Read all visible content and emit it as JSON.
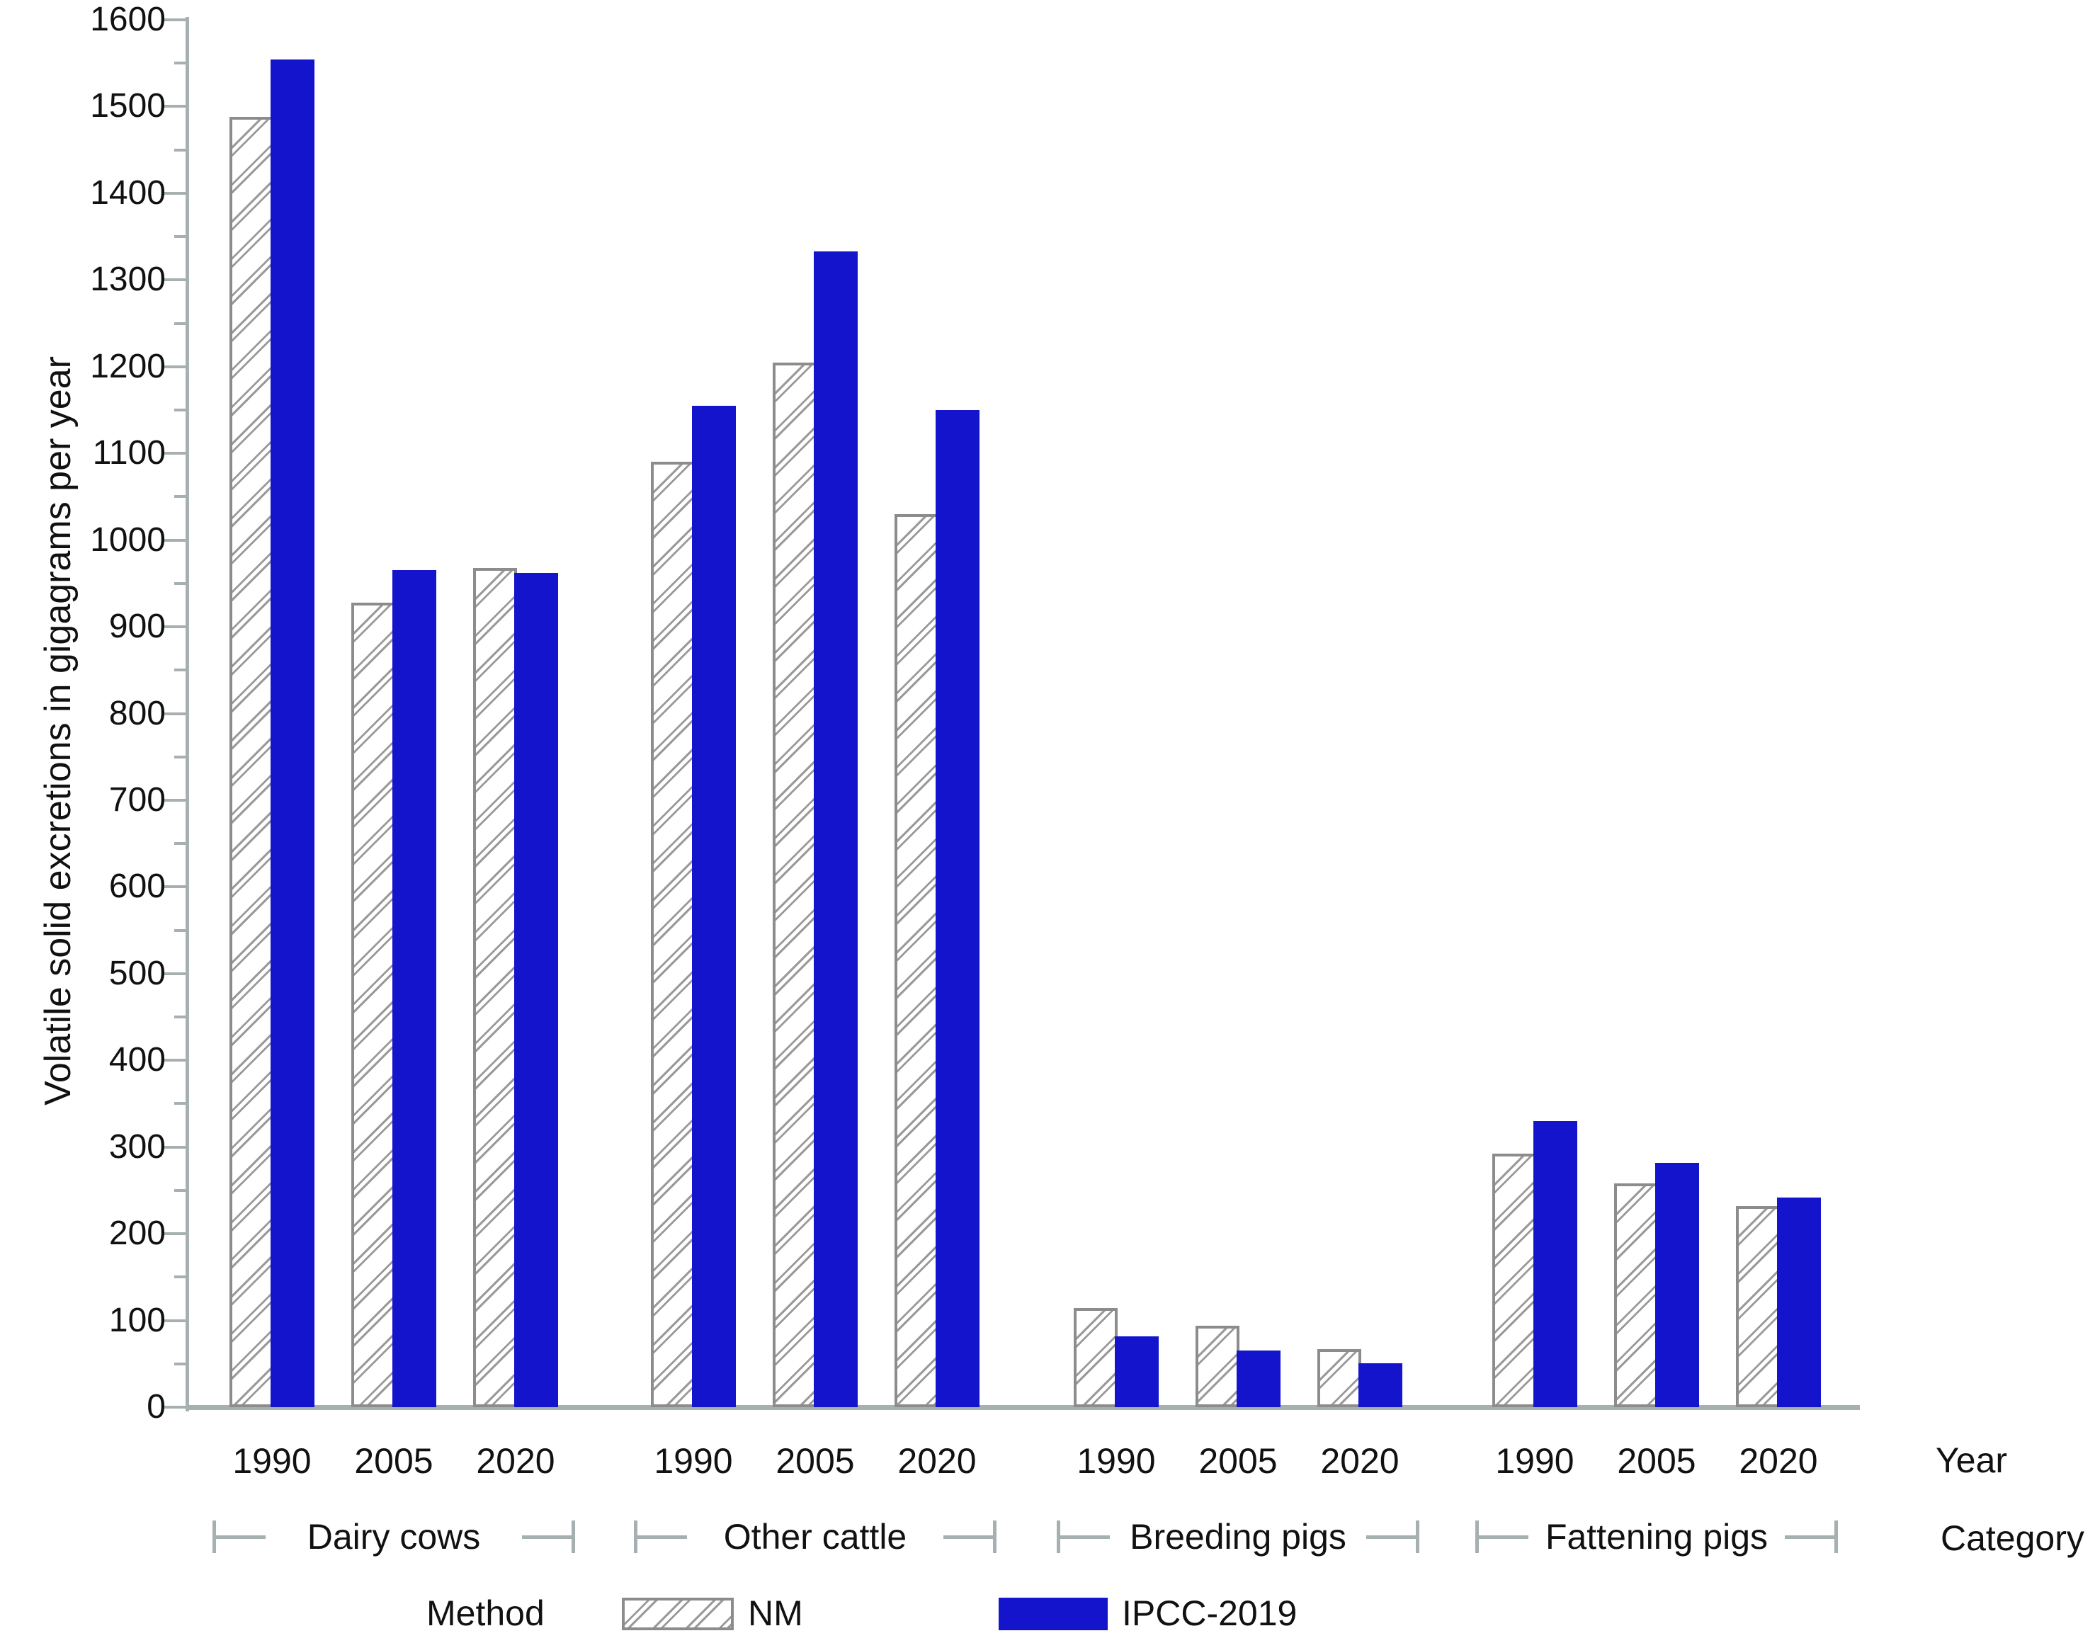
{
  "chart_data": {
    "type": "bar",
    "title": "",
    "ylabel": "Volatile solid excretions in gigagrams per year",
    "ylim": [
      0,
      1600
    ],
    "ytick_major_step": 100,
    "ytick_minor_step": 50,
    "grid": false,
    "legend_position": "bottom",
    "legend_title": "Method",
    "right_axis_labels": {
      "year": "Year",
      "category": "Category"
    },
    "years": [
      "1990",
      "2005",
      "2020"
    ],
    "categories": [
      "Dairy cows",
      "Other cattle",
      "Breeding pigs",
      "Fattening pigs"
    ],
    "series": [
      {
        "name": "NM",
        "pattern": "hatched",
        "values": [
          [
            1488,
            928,
            968
          ],
          [
            1090,
            1205,
            1030
          ],
          [
            114,
            94,
            67
          ],
          [
            292,
            258,
            232
          ]
        ]
      },
      {
        "name": "IPCC-2019",
        "pattern": "solid",
        "values": [
          [
            1554,
            965,
            962
          ],
          [
            1155,
            1333,
            1150
          ],
          [
            82,
            65,
            51
          ],
          [
            330,
            282,
            242
          ]
        ]
      }
    ],
    "colors": {
      "ipcc_blue": "#1414cc",
      "axis_gray": "#a6b0b0",
      "hatch_gray": "#9a9a9a",
      "bar_border_gray": "#8c8c8c",
      "text": "#111111"
    }
  }
}
